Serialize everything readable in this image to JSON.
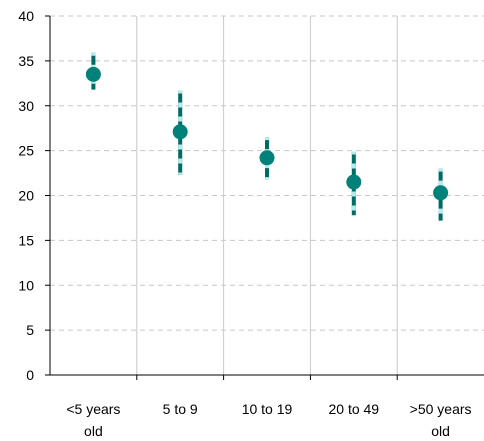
{
  "chart_data": {
    "type": "scatter",
    "title": "",
    "xlabel": "",
    "ylabel": "",
    "categories": [
      "<5 years old",
      "5 to 9",
      "10 to 19",
      "20 to 49",
      ">50 years old"
    ],
    "category_lines": [
      [
        "<5 years",
        "old"
      ],
      [
        "5 to 9"
      ],
      [
        "10 to 19"
      ],
      [
        "20 to 49"
      ],
      [
        ">50 years",
        "old"
      ]
    ],
    "series": [
      {
        "values": [
          33.5,
          27.1,
          24.2,
          21.5,
          20.3
        ],
        "error_low": [
          31.8,
          22.3,
          21.8,
          17.8,
          17.2
        ],
        "error_high": [
          35.9,
          31.7,
          26.5,
          24.9,
          23.0
        ]
      }
    ],
    "ylim": [
      0,
      40
    ],
    "yticks": [
      0,
      5,
      10,
      15,
      20,
      25,
      30,
      35,
      40
    ],
    "grid": {
      "horizontal": true,
      "horizontal_style": "dashed",
      "vertical": true
    },
    "legend": "none",
    "colors": {
      "point": "#00827a",
      "error_bar": "#006b64",
      "error_bar_dash": "#b4ecec",
      "grid": "#c8c8c8"
    }
  }
}
